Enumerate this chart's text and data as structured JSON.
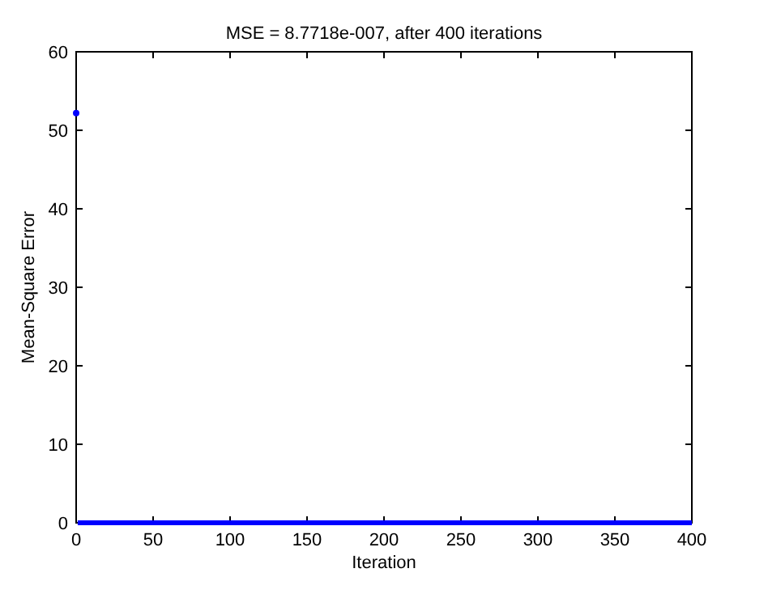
{
  "chart_data": {
    "type": "line",
    "title": "MSE = 8.7718e-007, after 400 iterations",
    "xlabel": "Iteration",
    "ylabel": "Mean-Square Error",
    "xlim": [
      0,
      400
    ],
    "xticks": [
      0,
      50,
      100,
      150,
      200,
      250,
      300,
      350,
      400
    ],
    "ylim": [
      0,
      60
    ],
    "yticks": [
      0,
      10,
      20,
      30,
      40,
      50,
      60
    ],
    "grid": false,
    "series": [
      {
        "type": "scatter",
        "color": "#0000ff",
        "marker": "circle",
        "x": [
          0
        ],
        "values": [
          52.2
        ]
      },
      {
        "color": "#0000ff",
        "marker": "none",
        "line_style": "solid",
        "x": [
          1,
          400
        ],
        "values": [
          0,
          0
        ]
      }
    ]
  }
}
